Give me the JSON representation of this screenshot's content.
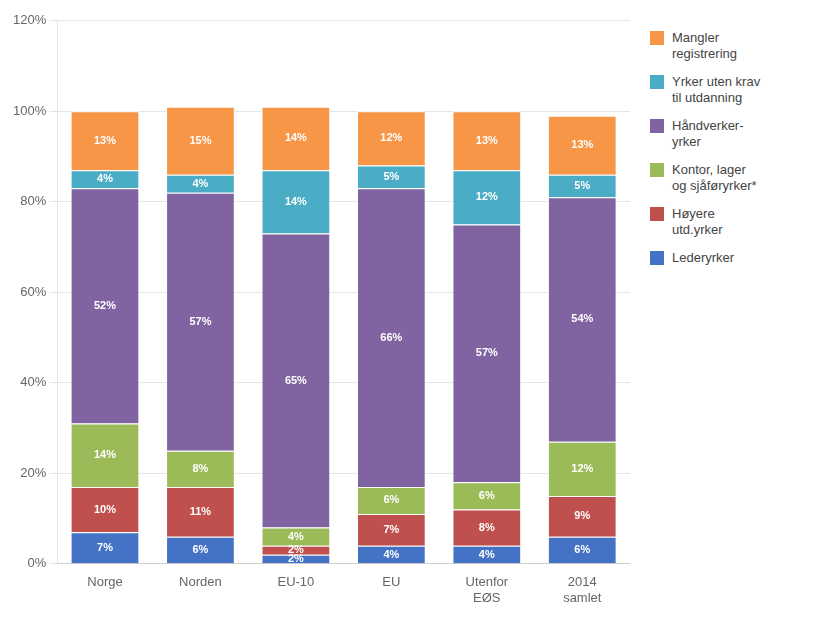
{
  "chart_data": {
    "type": "bar",
    "stacked": true,
    "data_labels": true,
    "grid": true,
    "legend": "right",
    "categories": [
      "Norge",
      "Norden",
      "EU-10",
      "EU",
      "Utenfor\nEØS",
      "2014\nsamlet"
    ],
    "series": [
      {
        "name": "Lederyrker",
        "color": "#4472C4",
        "values": [
          7,
          6,
          2,
          4,
          4,
          6
        ],
        "value_labels": [
          "7%",
          "6%",
          "2%",
          "4%",
          "4%",
          "6%"
        ]
      },
      {
        "name": "Høyere\nutd.yrker",
        "color": "#C0504D",
        "values": [
          10,
          11,
          2,
          7,
          8,
          9
        ],
        "value_labels": [
          "10%",
          "11%",
          "2%",
          "7%",
          "8%",
          "9%"
        ]
      },
      {
        "name": "Kontor, lager\nog sjåføryrker*",
        "color": "#9BBB59",
        "values": [
          14,
          8,
          4,
          6,
          6,
          12
        ],
        "value_labels": [
          "14%",
          "8%",
          "4%",
          "6%",
          "6%",
          "12%"
        ]
      },
      {
        "name": "Håndverker-\nyrker",
        "color": "#8064A2",
        "values": [
          52,
          57,
          65,
          66,
          57,
          54
        ],
        "value_labels": [
          "52%",
          "57%",
          "65%",
          "66%",
          "57%",
          "54%"
        ]
      },
      {
        "name": "Yrker uten krav\ntil utdanning",
        "color": "#4BACC6",
        "values": [
          4,
          4,
          14,
          5,
          12,
          5
        ],
        "value_labels": [
          "4%",
          "4%",
          "14%",
          "5%",
          "12%",
          "5%"
        ]
      },
      {
        "name": "Mangler\nregistrering",
        "color": "#F79646",
        "values": [
          13,
          15,
          14,
          12,
          13,
          13
        ],
        "value_labels": [
          "13%",
          "15%",
          "14%",
          "12%",
          "13%",
          "13%"
        ]
      }
    ],
    "ylim": [
      0,
      120
    ],
    "yticks": [
      {
        "value": 0,
        "label": "0%"
      },
      {
        "value": 20,
        "label": "20%"
      },
      {
        "value": 40,
        "label": "40%"
      },
      {
        "value": 60,
        "label": "60%"
      },
      {
        "value": 80,
        "label": "80%"
      },
      {
        "value": 100,
        "label": "100%"
      },
      {
        "value": 120,
        "label": "120%"
      }
    ]
  }
}
